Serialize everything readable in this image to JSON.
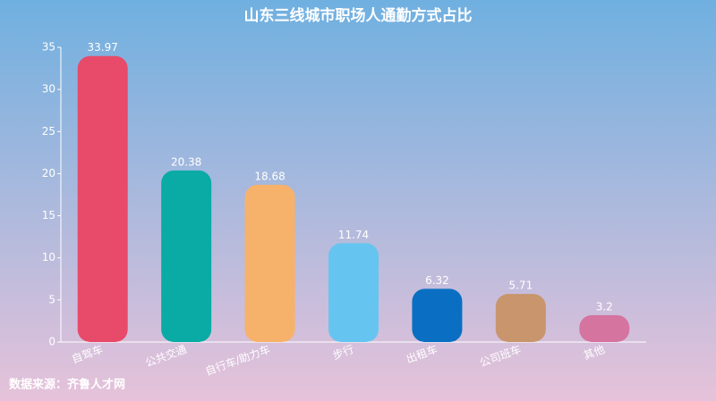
{
  "chart_data": {
    "type": "bar",
    "title": "山东三线城市职场人通勤方式占比",
    "source": "数据来源：齐鲁人才网",
    "categories": [
      "自驾车",
      "公共交通",
      "自行车/助力车",
      "步行",
      "出租车",
      "公司班车",
      "其他"
    ],
    "values": [
      33.97,
      20.38,
      18.68,
      11.74,
      6.32,
      5.71,
      3.2
    ],
    "colors": [
      "#e84a6a",
      "#0aaba5",
      "#f6b26b",
      "#66c5f0",
      "#0a6fc2",
      "#c8956c",
      "#d4749f"
    ],
    "ylim": [
      0,
      35
    ],
    "yticks": [
      0,
      5,
      10,
      15,
      20,
      25,
      30,
      35
    ]
  }
}
